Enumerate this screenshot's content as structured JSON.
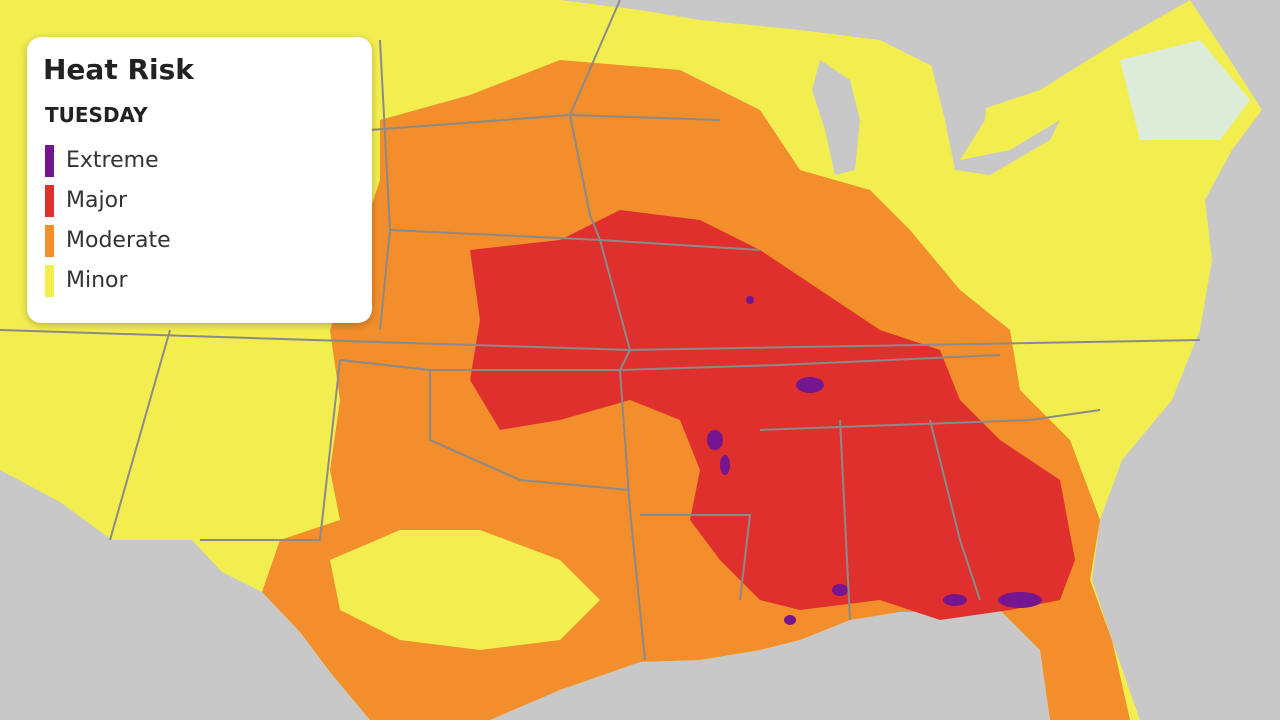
{
  "legend": {
    "title": "Heat Risk",
    "subtitle": "TUESDAY",
    "items": [
      {
        "label": "Extreme",
        "color": "#75158f"
      },
      {
        "label": "Major",
        "color": "#e0302e"
      },
      {
        "label": "Moderate",
        "color": "#f28e2b"
      },
      {
        "label": "Minor",
        "color": "#f2ee4f"
      }
    ]
  }
}
